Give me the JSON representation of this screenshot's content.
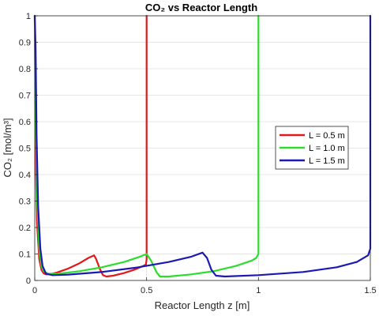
{
  "chart_data": {
    "type": "line",
    "title": "CO₂ vs Reactor Length",
    "xlabel": "Reactor Length z [m]",
    "ylabel": "CO₂ [mol/m³]",
    "xlim": [
      0,
      1.5
    ],
    "ylim": [
      0,
      1
    ],
    "xticks": [
      "0",
      "0.5",
      "1",
      "1.5"
    ],
    "yticks": [
      "0",
      "0.1",
      "0.2",
      "0.3",
      "0.4",
      "0.5",
      "0.6",
      "0.7",
      "0.8",
      "0.9",
      "1"
    ],
    "grid": true,
    "legend_position": "right",
    "series": [
      {
        "name": "L = 0.5 m",
        "color": "#e0191a",
        "x": [
          0,
          0.005,
          0.01,
          0.02,
          0.03,
          0.04,
          0.05,
          0.07,
          0.1,
          0.15,
          0.2,
          0.24,
          0.265,
          0.275,
          0.29,
          0.305,
          0.32,
          0.35,
          0.4,
          0.45,
          0.485,
          0.497,
          0.5,
          0.5
        ],
        "y": [
          1,
          0.45,
          0.22,
          0.08,
          0.04,
          0.027,
          0.023,
          0.024,
          0.03,
          0.045,
          0.065,
          0.085,
          0.095,
          0.08,
          0.045,
          0.02,
          0.015,
          0.018,
          0.028,
          0.042,
          0.055,
          0.06,
          0.08,
          1
        ]
      },
      {
        "name": "L = 1.0 m",
        "color": "#2ddd2d",
        "x": [
          0,
          0.005,
          0.01,
          0.02,
          0.03,
          0.04,
          0.06,
          0.1,
          0.2,
          0.3,
          0.4,
          0.47,
          0.5,
          0.52,
          0.545,
          0.56,
          0.6,
          0.7,
          0.8,
          0.9,
          0.97,
          0.99,
          1.0,
          1.0
        ],
        "y": [
          1,
          0.6,
          0.32,
          0.12,
          0.055,
          0.035,
          0.026,
          0.025,
          0.035,
          0.05,
          0.07,
          0.09,
          0.1,
          0.075,
          0.03,
          0.015,
          0.015,
          0.023,
          0.035,
          0.055,
          0.075,
          0.085,
          0.1,
          1
        ]
      },
      {
        "name": "L = 1.5 m",
        "color": "#1a1ab3",
        "x": [
          0,
          0.004,
          0.008,
          0.015,
          0.025,
          0.035,
          0.05,
          0.08,
          0.15,
          0.3,
          0.45,
          0.6,
          0.7,
          0.75,
          0.77,
          0.79,
          0.81,
          0.85,
          1.0,
          1.2,
          1.35,
          1.44,
          1.49,
          1.5,
          1.5
        ],
        "y": [
          1,
          0.88,
          0.55,
          0.28,
          0.12,
          0.055,
          0.025,
          0.02,
          0.022,
          0.032,
          0.048,
          0.07,
          0.09,
          0.105,
          0.085,
          0.04,
          0.018,
          0.015,
          0.02,
          0.032,
          0.05,
          0.07,
          0.095,
          0.12,
          1
        ]
      }
    ]
  }
}
